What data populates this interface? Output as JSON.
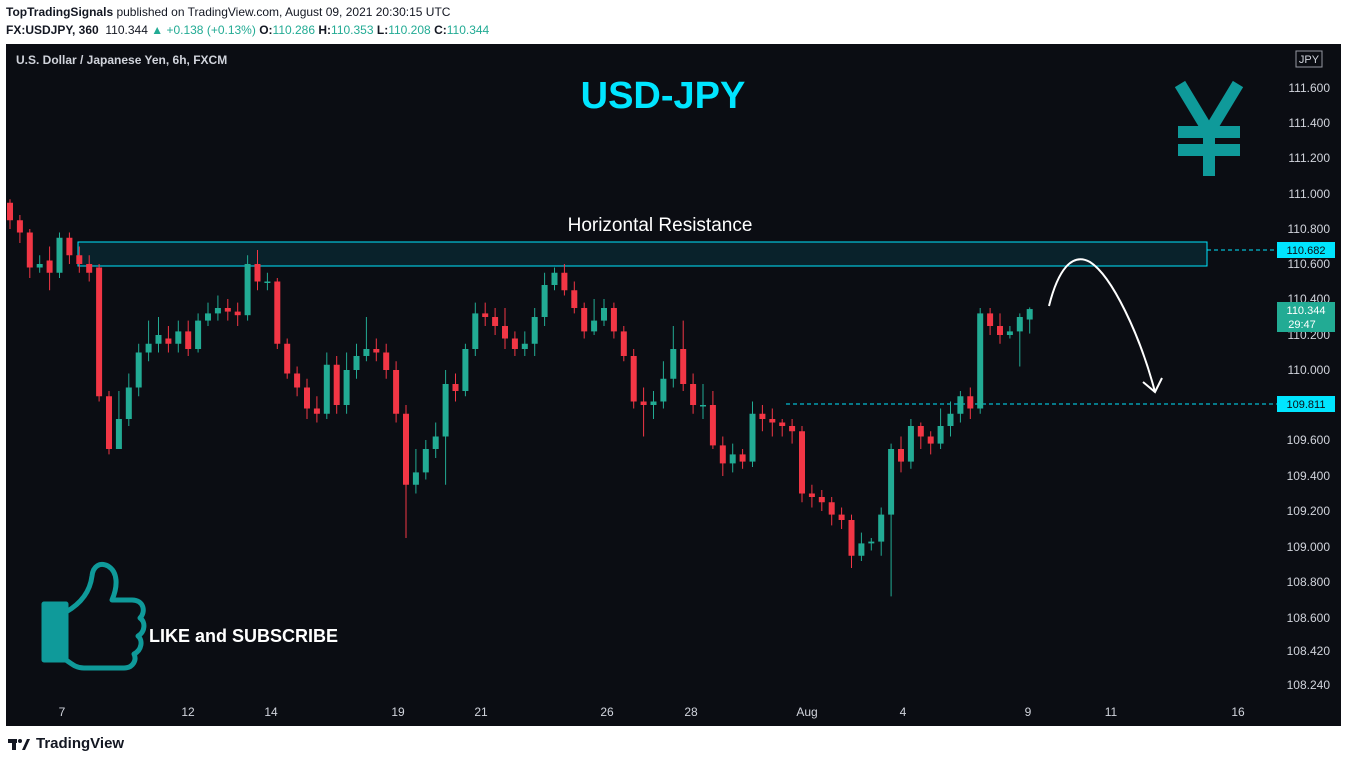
{
  "header": {
    "publisher": "TopTradingSignals",
    "published_text": " published on TradingView.com, August 09, 2021 20:30:15 UTC",
    "symbol": "FX:USDJPY, 360",
    "last": "110.344",
    "change": "▲ +0.138 (+0.13%)",
    "o_label": "O:",
    "o_val": "110.286",
    "h_label": "H:",
    "h_val": "110.353",
    "l_label": "L:",
    "l_val": "110.208",
    "c_label": "C:",
    "c_val": "110.344"
  },
  "chart_title_small": "U.S. Dollar / Japanese Yen, 6h, FXCM",
  "currency_badge": "JPY",
  "annotations": {
    "big_title": "USD-JPY",
    "resistance_label": "Horizontal Resistance",
    "like_text": "LIKE and SUBSCRIBE",
    "yen_icon": "yen-icon",
    "thumb_icon": "thumbs-up-icon"
  },
  "price_labels": {
    "resistance": "110.682",
    "support": "109.811",
    "last": "110.344",
    "countdown": "29:47"
  },
  "footer": {
    "brand": "TradingView",
    "logo": "tradingview-logo-icon"
  },
  "colors": {
    "up": "#22ab94",
    "down": "#f23645",
    "accent": "#00e5ff",
    "teal": "#0f9a9a",
    "bg": "#0b0d13"
  },
  "chart_data": {
    "type": "candlestick",
    "title": "U.S. Dollar / Japanese Yen, 6h, FXCM",
    "ylim": [
      108.2,
      111.85
    ],
    "y_ticks": [
      "111.600",
      "111.400",
      "111.200",
      "111.000",
      "110.800",
      "110.600",
      "110.400",
      "110.200",
      "110.000",
      "109.600",
      "109.400",
      "109.200",
      "109.000",
      "108.800",
      "108.600",
      "108.420",
      "108.240"
    ],
    "x_ticks": [
      "7",
      "12",
      "14",
      "19",
      "21",
      "26",
      "28",
      "Aug",
      "4",
      "9",
      "11",
      "16"
    ],
    "resistance_zone": [
      110.58,
      110.73
    ],
    "levels": [
      110.682,
      109.811
    ],
    "candles": [
      [
        110.95,
        110.85,
        110.97,
        110.8
      ],
      [
        110.85,
        110.78,
        110.88,
        110.72
      ],
      [
        110.78,
        110.58,
        110.8,
        110.52
      ],
      [
        110.58,
        110.6,
        110.65,
        110.55
      ],
      [
        110.62,
        110.55,
        110.7,
        110.45
      ],
      [
        110.55,
        110.75,
        110.78,
        110.52
      ],
      [
        110.75,
        110.65,
        110.78,
        110.6
      ],
      [
        110.65,
        110.6,
        110.7,
        110.55
      ],
      [
        110.6,
        110.55,
        110.65,
        110.5
      ],
      [
        110.58,
        109.85,
        110.6,
        109.82
      ],
      [
        109.85,
        109.55,
        109.88,
        109.52
      ],
      [
        109.55,
        109.72,
        109.88,
        109.55
      ],
      [
        109.72,
        109.9,
        109.98,
        109.68
      ],
      [
        109.9,
        110.1,
        110.15,
        109.85
      ],
      [
        110.1,
        110.15,
        110.28,
        110.05
      ],
      [
        110.15,
        110.2,
        110.3,
        110.1
      ],
      [
        110.18,
        110.15,
        110.25,
        110.1
      ],
      [
        110.15,
        110.22,
        110.28,
        110.1
      ],
      [
        110.22,
        110.12,
        110.28,
        110.08
      ],
      [
        110.12,
        110.28,
        110.32,
        110.1
      ],
      [
        110.28,
        110.32,
        110.38,
        110.25
      ],
      [
        110.32,
        110.35,
        110.42,
        110.28
      ],
      [
        110.35,
        110.33,
        110.4,
        110.28
      ],
      [
        110.33,
        110.31,
        110.38,
        110.25
      ],
      [
        110.31,
        110.6,
        110.65,
        110.28
      ],
      [
        110.6,
        110.5,
        110.68,
        110.45
      ],
      [
        110.5,
        110.5,
        110.55,
        110.45
      ],
      [
        110.5,
        110.15,
        110.52,
        110.12
      ],
      [
        110.15,
        109.98,
        110.18,
        109.95
      ],
      [
        109.98,
        109.9,
        110.02,
        109.85
      ],
      [
        109.9,
        109.78,
        109.95,
        109.72
      ],
      [
        109.78,
        109.75,
        109.85,
        109.7
      ],
      [
        109.75,
        110.03,
        110.1,
        109.72
      ],
      [
        110.03,
        109.8,
        110.08,
        109.75
      ],
      [
        109.8,
        110.0,
        110.1,
        109.75
      ],
      [
        110.0,
        110.08,
        110.15,
        109.95
      ],
      [
        110.08,
        110.12,
        110.3,
        110.05
      ],
      [
        110.12,
        110.1,
        110.18,
        110.05
      ],
      [
        110.1,
        110.0,
        110.15,
        109.95
      ],
      [
        110.0,
        109.75,
        110.05,
        109.7
      ],
      [
        109.75,
        109.35,
        109.8,
        109.05
      ],
      [
        109.35,
        109.42,
        109.55,
        109.3
      ],
      [
        109.42,
        109.55,
        109.6,
        109.38
      ],
      [
        109.55,
        109.62,
        109.7,
        109.5
      ],
      [
        109.62,
        109.92,
        110.0,
        109.35
      ],
      [
        109.92,
        109.88,
        109.98,
        109.82
      ],
      [
        109.88,
        110.12,
        110.15,
        109.85
      ],
      [
        110.12,
        110.32,
        110.38,
        110.08
      ],
      [
        110.32,
        110.3,
        110.38,
        110.25
      ],
      [
        110.3,
        110.25,
        110.35,
        110.2
      ],
      [
        110.25,
        110.18,
        110.35,
        110.12
      ],
      [
        110.18,
        110.12,
        110.22,
        110.08
      ],
      [
        110.12,
        110.15,
        110.22,
        110.08
      ],
      [
        110.15,
        110.3,
        110.35,
        110.08
      ],
      [
        110.3,
        110.48,
        110.55,
        110.25
      ],
      [
        110.48,
        110.55,
        110.58,
        110.45
      ],
      [
        110.55,
        110.45,
        110.6,
        110.42
      ],
      [
        110.45,
        110.35,
        110.5,
        110.32
      ],
      [
        110.35,
        110.22,
        110.38,
        110.18
      ],
      [
        110.22,
        110.28,
        110.4,
        110.2
      ],
      [
        110.28,
        110.35,
        110.4,
        110.25
      ],
      [
        110.35,
        110.22,
        110.38,
        110.18
      ],
      [
        110.22,
        110.08,
        110.25,
        110.05
      ],
      [
        110.08,
        109.82,
        110.12,
        109.78
      ],
      [
        109.82,
        109.8,
        109.9,
        109.62
      ],
      [
        109.8,
        109.82,
        109.88,
        109.72
      ],
      [
        109.82,
        109.95,
        110.05,
        109.78
      ],
      [
        109.95,
        110.12,
        110.25,
        109.9
      ],
      [
        110.12,
        109.92,
        110.28,
        109.88
      ],
      [
        109.92,
        109.8,
        109.98,
        109.75
      ],
      [
        109.8,
        109.8,
        109.92,
        109.72
      ],
      [
        109.8,
        109.57,
        109.88,
        109.55
      ],
      [
        109.57,
        109.47,
        109.62,
        109.4
      ],
      [
        109.47,
        109.52,
        109.58,
        109.42
      ],
      [
        109.52,
        109.48,
        109.55,
        109.44
      ],
      [
        109.48,
        109.75,
        109.82,
        109.45
      ],
      [
        109.75,
        109.72,
        109.8,
        109.65
      ],
      [
        109.72,
        109.7,
        109.78,
        109.62
      ],
      [
        109.7,
        109.68,
        109.72,
        109.62
      ],
      [
        109.68,
        109.65,
        109.72,
        109.58
      ],
      [
        109.65,
        109.3,
        109.68,
        109.25
      ],
      [
        109.3,
        109.28,
        109.35,
        109.22
      ],
      [
        109.28,
        109.25,
        109.32,
        109.2
      ],
      [
        109.25,
        109.18,
        109.28,
        109.12
      ],
      [
        109.18,
        109.15,
        109.22,
        109.1
      ],
      [
        109.15,
        108.95,
        109.18,
        108.88
      ],
      [
        108.95,
        109.02,
        109.08,
        108.92
      ],
      [
        109.02,
        109.03,
        109.05,
        108.98
      ],
      [
        109.03,
        109.18,
        109.22,
        108.95
      ],
      [
        109.18,
        109.55,
        109.58,
        108.72
      ],
      [
        109.55,
        109.48,
        109.62,
        109.42
      ],
      [
        109.48,
        109.68,
        109.72,
        109.44
      ],
      [
        109.68,
        109.62,
        109.7,
        109.55
      ],
      [
        109.62,
        109.58,
        109.65,
        109.52
      ],
      [
        109.58,
        109.68,
        109.78,
        109.55
      ],
      [
        109.68,
        109.75,
        109.82,
        109.62
      ],
      [
        109.75,
        109.85,
        109.88,
        109.7
      ],
      [
        109.85,
        109.78,
        109.9,
        109.72
      ],
      [
        109.78,
        110.32,
        110.35,
        109.75
      ],
      [
        110.32,
        110.25,
        110.35,
        110.2
      ],
      [
        110.25,
        110.2,
        110.32,
        110.15
      ],
      [
        110.2,
        110.22,
        110.25,
        110.18
      ],
      [
        110.22,
        110.3,
        110.32,
        110.02
      ],
      [
        110.286,
        110.344,
        110.353,
        110.208
      ]
    ]
  }
}
